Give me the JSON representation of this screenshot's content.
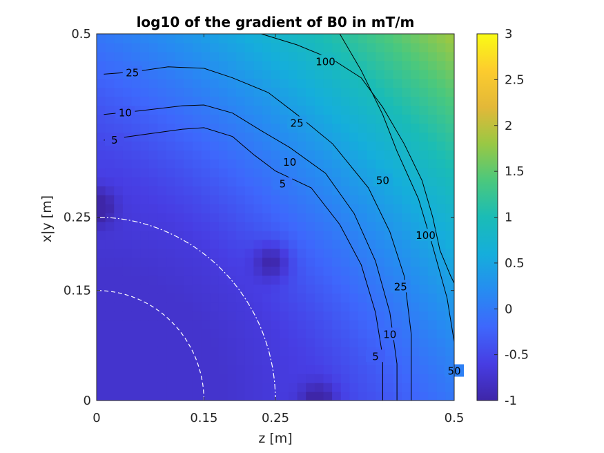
{
  "chart_data": {
    "type": "heatmap",
    "title": "log10 of the gradient of B0 in mT/m",
    "xlabel": "z [m]",
    "ylabel": "x|y [m]",
    "xlim": [
      0,
      0.5
    ],
    "ylim": [
      0,
      0.5
    ],
    "x_ticks": [
      {
        "value": 0,
        "label": "0"
      },
      {
        "value": 0.15,
        "label": "0.15"
      },
      {
        "value": 0.25,
        "label": "0.25"
      },
      {
        "value": 0.5,
        "label": "0.5"
      }
    ],
    "y_ticks": [
      {
        "value": 0,
        "label": "0"
      },
      {
        "value": 0.15,
        "label": "0.15"
      },
      {
        "value": 0.25,
        "label": "0.25"
      },
      {
        "value": 0.5,
        "label": "0.5"
      }
    ],
    "colorbar": {
      "colormap": "parula",
      "range": [
        -1,
        3
      ],
      "ticks": [
        {
          "value": 3,
          "label": "3"
        },
        {
          "value": 2.5,
          "label": "2.5"
        },
        {
          "value": 2,
          "label": "2"
        },
        {
          "value": 1.5,
          "label": "1.5"
        },
        {
          "value": 1,
          "label": "1"
        },
        {
          "value": 0.5,
          "label": "0.5"
        },
        {
          "value": 0,
          "label": "0"
        },
        {
          "value": -0.5,
          "label": "-0.5"
        },
        {
          "value": -1,
          "label": "-1"
        }
      ]
    },
    "minima": [
      {
        "z": 0.0,
        "r": 0.265
      },
      {
        "z": 0.245,
        "r": 0.19
      },
      {
        "z": 0.31,
        "r": 0.0
      }
    ],
    "contours": [
      {
        "level": 5,
        "label": "5",
        "points": [
          [
            0.01,
            0.355
          ],
          [
            0.06,
            0.362
          ],
          [
            0.12,
            0.37
          ],
          [
            0.15,
            0.372
          ],
          [
            0.19,
            0.36
          ],
          [
            0.22,
            0.335
          ],
          [
            0.25,
            0.313
          ],
          [
            0.3,
            0.29
          ],
          [
            0.34,
            0.24
          ],
          [
            0.37,
            0.185
          ],
          [
            0.39,
            0.12
          ],
          [
            0.4,
            0.06
          ],
          [
            0.4,
            0.0
          ]
        ],
        "labels": [
          {
            "z": 0.025,
            "r": 0.355,
            "text": "5"
          },
          {
            "z": 0.26,
            "r": 0.295,
            "text": "5"
          },
          {
            "z": 0.39,
            "r": 0.06,
            "text": "5"
          }
        ]
      },
      {
        "level": 10,
        "label": "10",
        "points": [
          [
            0.01,
            0.39
          ],
          [
            0.06,
            0.395
          ],
          [
            0.12,
            0.402
          ],
          [
            0.15,
            0.403
          ],
          [
            0.19,
            0.392
          ],
          [
            0.23,
            0.368
          ],
          [
            0.27,
            0.345
          ],
          [
            0.32,
            0.31
          ],
          [
            0.36,
            0.255
          ],
          [
            0.39,
            0.19
          ],
          [
            0.41,
            0.12
          ],
          [
            0.42,
            0.05
          ],
          [
            0.42,
            0.0
          ]
        ],
        "labels": [
          {
            "z": 0.04,
            "r": 0.392,
            "text": "10"
          },
          {
            "z": 0.27,
            "r": 0.325,
            "text": "10"
          },
          {
            "z": 0.41,
            "r": 0.09,
            "text": "10"
          }
        ]
      },
      {
        "level": 25,
        "label": "25",
        "points": [
          [
            0.01,
            0.445
          ],
          [
            0.05,
            0.448
          ],
          [
            0.1,
            0.455
          ],
          [
            0.15,
            0.453
          ],
          [
            0.19,
            0.44
          ],
          [
            0.24,
            0.42
          ],
          [
            0.28,
            0.39
          ],
          [
            0.33,
            0.35
          ],
          [
            0.38,
            0.29
          ],
          [
            0.41,
            0.23
          ],
          [
            0.43,
            0.17
          ],
          [
            0.44,
            0.09
          ],
          [
            0.44,
            0.0
          ]
        ],
        "labels": [
          {
            "z": 0.05,
            "r": 0.447,
            "text": "25"
          },
          {
            "z": 0.28,
            "r": 0.378,
            "text": "25"
          },
          {
            "z": 0.425,
            "r": 0.155,
            "text": "25"
          }
        ]
      },
      {
        "level": 50,
        "label": "50",
        "points": [
          [
            0.34,
            0.5
          ],
          [
            0.37,
            0.45
          ],
          [
            0.4,
            0.39
          ],
          [
            0.42,
            0.34
          ],
          [
            0.45,
            0.275
          ],
          [
            0.47,
            0.21
          ],
          [
            0.49,
            0.14
          ],
          [
            0.5,
            0.08
          ],
          [
            0.5,
            0.0
          ]
        ],
        "labels": [
          {
            "z": 0.4,
            "r": 0.3,
            "text": "50"
          },
          {
            "z": 0.5,
            "r": 0.04,
            "text": "50"
          }
        ]
      },
      {
        "level": 100,
        "label": "100",
        "points": [
          [
            0.23,
            0.5
          ],
          [
            0.28,
            0.485
          ],
          [
            0.33,
            0.465
          ],
          [
            0.37,
            0.44
          ],
          [
            0.4,
            0.4
          ],
          [
            0.43,
            0.35
          ],
          [
            0.455,
            0.3
          ],
          [
            0.47,
            0.25
          ],
          [
            0.48,
            0.205
          ],
          [
            0.495,
            0.17
          ],
          [
            0.5,
            0.16
          ]
        ],
        "labels": [
          {
            "z": 0.32,
            "r": 0.462,
            "text": "100"
          },
          {
            "z": 0.46,
            "r": 0.225,
            "text": "100"
          }
        ]
      }
    ],
    "white_lines": [
      {
        "style": "dashed",
        "radius": 0.15
      },
      {
        "style": "dash-dot",
        "radius": 0.25
      }
    ]
  }
}
